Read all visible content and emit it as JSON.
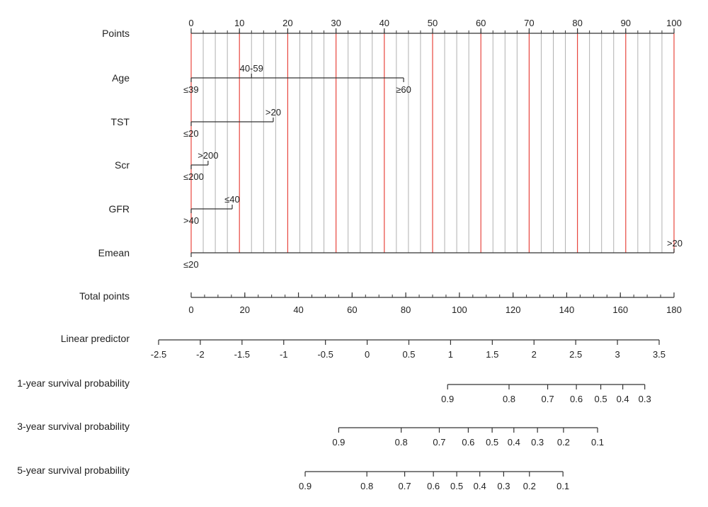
{
  "chart_data": {
    "type": "nomogram",
    "points_axis": {
      "label": "Points",
      "min": 0,
      "max": 100,
      "major_ticks": [
        0,
        10,
        20,
        30,
        40,
        50,
        60,
        70,
        80,
        90,
        100
      ],
      "minor_step": 2.5,
      "red_gridlines": true
    },
    "variables": [
      {
        "name": "Age",
        "segment": [
          0,
          44
        ],
        "levels": [
          {
            "label": "≤39",
            "points": 0,
            "side": "below"
          },
          {
            "label": "40-59",
            "points": 12.5,
            "side": "above"
          },
          {
            "label": "≥60",
            "points": 44,
            "side": "below"
          }
        ]
      },
      {
        "name": "TST",
        "segment": [
          0,
          17
        ],
        "levels": [
          {
            "label": "≤20",
            "points": 0,
            "side": "below"
          },
          {
            "label": ">20",
            "points": 17,
            "side": "above"
          }
        ]
      },
      {
        "name": "Scr",
        "segment": [
          0,
          3.5
        ],
        "levels": [
          {
            "label": "≤200",
            "points": 0,
            "side": "below"
          },
          {
            "label": ">200",
            "points": 3.5,
            "side": "above"
          }
        ]
      },
      {
        "name": "GFR",
        "segment": [
          0,
          8.5
        ],
        "levels": [
          {
            "label": ">40",
            "points": 0,
            "side": "below"
          },
          {
            "label": "≤40",
            "points": 8.5,
            "side": "above"
          }
        ]
      },
      {
        "name": "Emean",
        "segment": [
          0,
          100
        ],
        "levels": [
          {
            "label": "≤20",
            "points": 0,
            "side": "below"
          },
          {
            "label": ">20",
            "points": 100,
            "side": "above"
          }
        ]
      }
    ],
    "total_points": {
      "label": "Total points",
      "min": 0,
      "max": 180,
      "ticks": [
        0,
        20,
        40,
        60,
        80,
        100,
        120,
        140,
        160,
        180
      ],
      "minor_step": 5
    },
    "linear_predictor": {
      "label": "Linear predictor",
      "min": -2.5,
      "max": 3.5,
      "ticks": [
        -2.5,
        -2,
        -1.5,
        -1,
        -0.5,
        0,
        0.5,
        1,
        1.5,
        2,
        2.5,
        3,
        3.5
      ],
      "tick_labels": [
        "-2.5",
        "-2",
        "-1.5",
        "-1",
        "-0.5",
        "0",
        "0.5",
        "1",
        "1.5",
        "2",
        "2.5",
        "3",
        "3.5"
      ]
    },
    "survival_axes": [
      {
        "label": "1-year survival probability",
        "ticks": [
          {
            "value": "0.9",
            "total_points": 95.6
          },
          {
            "value": "0.8",
            "total_points": 118.5
          },
          {
            "value": "0.7",
            "total_points": 132.9
          },
          {
            "value": "0.6",
            "total_points": 143.6
          },
          {
            "value": "0.5",
            "total_points": 152.7
          },
          {
            "value": "0.4",
            "total_points": 160.9
          },
          {
            "value": "0.3",
            "total_points": 169.1
          }
        ]
      },
      {
        "label": "3-year survival probability",
        "ticks": [
          {
            "value": "0.9",
            "total_points": 55.0
          },
          {
            "value": "0.8",
            "total_points": 78.3
          },
          {
            "value": "0.7",
            "total_points": 92.5
          },
          {
            "value": "0.6",
            "total_points": 103.3
          },
          {
            "value": "0.5",
            "total_points": 112.2
          },
          {
            "value": "0.4",
            "total_points": 120.3
          },
          {
            "value": "0.3",
            "total_points": 129.1
          },
          {
            "value": "0.2",
            "total_points": 138.8
          },
          {
            "value": "0.1",
            "total_points": 151.5
          }
        ]
      },
      {
        "label": "5-year survival probability",
        "ticks": [
          {
            "value": "0.9",
            "total_points": 42.5
          },
          {
            "value": "0.8",
            "total_points": 65.5
          },
          {
            "value": "0.7",
            "total_points": 79.6
          },
          {
            "value": "0.6",
            "total_points": 90.3
          },
          {
            "value": "0.5",
            "total_points": 99.0
          },
          {
            "value": "0.4",
            "total_points": 107.6
          },
          {
            "value": "0.3",
            "total_points": 116.5
          },
          {
            "value": "0.2",
            "total_points": 126.1
          },
          {
            "value": "0.1",
            "total_points": 138.6
          }
        ]
      }
    ]
  }
}
